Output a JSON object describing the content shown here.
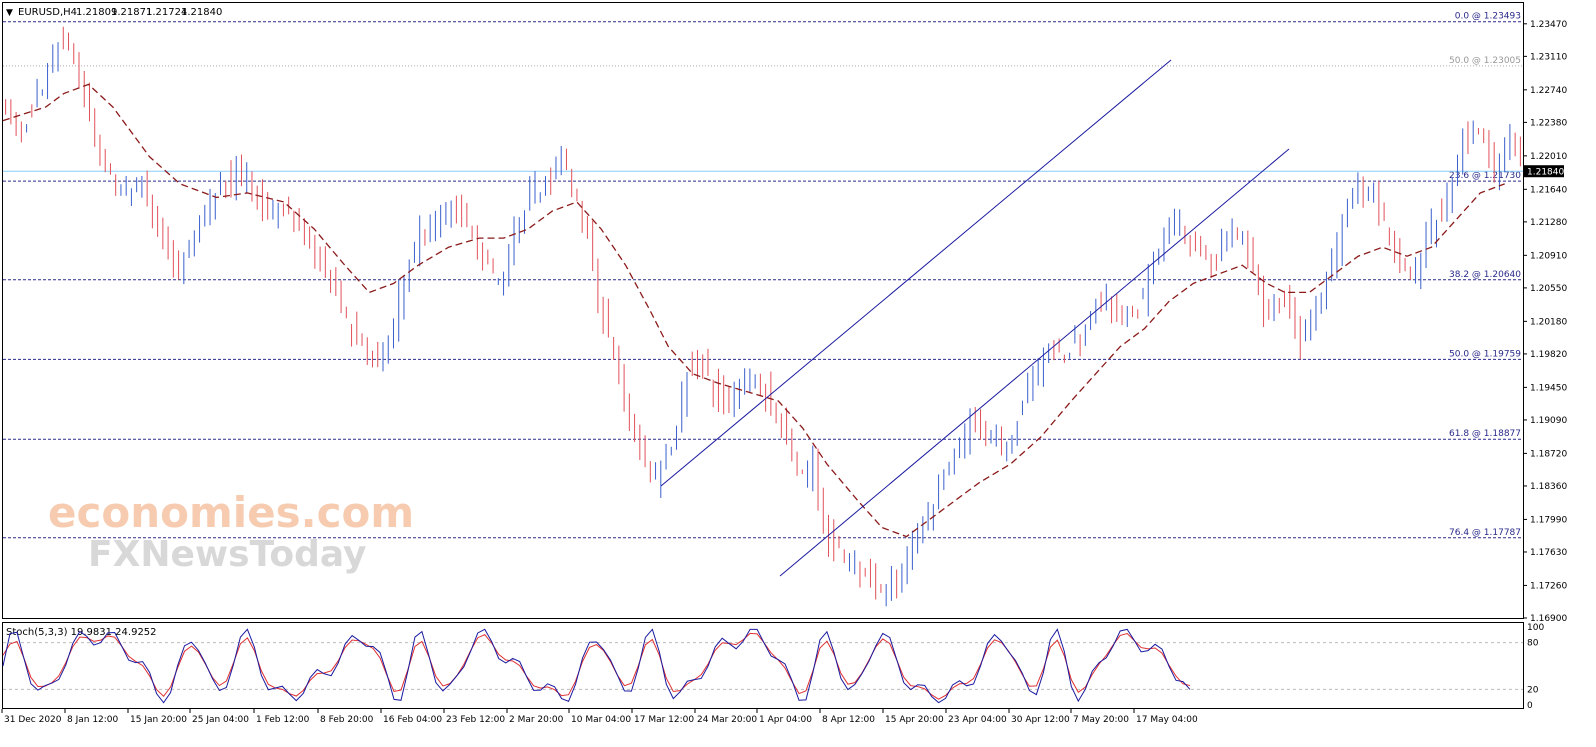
{
  "header": {
    "symbol": "EURUSD,H4",
    "open": "1.21809",
    "high": "1.21871",
    "low": "1.21724",
    "close": "1.21840"
  },
  "stoch_header": "Stoch(5,3,3) 19.9831 24.9252",
  "watermark": {
    "brand": "economies.com",
    "sub": "FXNewsToday"
  },
  "colors": {
    "bull": "#3a5fcd",
    "bear": "#e0505a",
    "ma": "#8b1a1a",
    "fib": "#2a2a8a",
    "fib50top": "#aaaaaa",
    "channel": "#1a1aa0",
    "price_line": "#87cefa",
    "stoch_main": "#1a1aa0",
    "stoch_signal": "#e03030"
  },
  "chart_data": {
    "type": "candlestick",
    "ylim": [
      1.169,
      1.237
    ],
    "y_ticks": [
      "1.23470",
      "1.23110",
      "1.22740",
      "1.22380",
      "1.22010",
      "1.21640",
      "1.21280",
      "1.20910",
      "1.20550",
      "1.20180",
      "1.19820",
      "1.19450",
      "1.19090",
      "1.18720",
      "1.18360",
      "1.17990",
      "1.17630",
      "1.17260",
      "1.16900"
    ],
    "current_price_label": "1.21840",
    "x_ticks": [
      "31 Dec 2020",
      "8 Jan 12:00",
      "15 Jan 20:00",
      "25 Jan 04:00",
      "1 Feb 12:00",
      "8 Feb 20:00",
      "16 Feb 04:00",
      "23 Feb 12:00",
      "2 Mar 20:00",
      "10 Mar 04:00",
      "17 Mar 12:00",
      "24 Mar 20:00",
      "1 Apr 04:00",
      "8 Apr 12:00",
      "15 Apr 20:00",
      "23 Apr 04:00",
      "30 Apr 12:00",
      "7 May 20:00",
      "17 May 04:00"
    ],
    "n_bars": 290,
    "path_points": [
      [
        0,
        1.227
      ],
      [
        6,
        1.222
      ],
      [
        14,
        1.228
      ],
      [
        20,
        1.233
      ],
      [
        26,
        1.229
      ],
      [
        32,
        1.22
      ],
      [
        38,
        1.216
      ],
      [
        46,
        1.217
      ],
      [
        54,
        1.21
      ],
      [
        58,
        1.207
      ],
      [
        64,
        1.212
      ],
      [
        72,
        1.217
      ],
      [
        80,
        1.218
      ],
      [
        88,
        1.214
      ],
      [
        94,
        1.214
      ],
      [
        100,
        1.211
      ],
      [
        106,
        1.208
      ],
      [
        112,
        1.203
      ],
      [
        118,
        1.2
      ],
      [
        124,
        1.197
      ],
      [
        128,
        1.201
      ],
      [
        132,
        1.206
      ],
      [
        136,
        1.21
      ],
      [
        142,
        1.213
      ],
      [
        148,
        1.214
      ],
      [
        154,
        1.212
      ],
      [
        160,
        1.208
      ],
      [
        164,
        1.205
      ],
      [
        168,
        1.212
      ],
      [
        174,
        1.216
      ],
      [
        180,
        1.217
      ],
      [
        184,
        1.22
      ],
      [
        188,
        1.216
      ],
      [
        192,
        1.212
      ],
      [
        196,
        1.204
      ],
      [
        202,
        1.196
      ],
      [
        208,
        1.189
      ],
      [
        214,
        1.184
      ],
      [
        220,
        1.188
      ],
      [
        226,
        1.198
      ],
      [
        232,
        1.196
      ],
      [
        238,
        1.192
      ],
      [
        244,
        1.196
      ],
      [
        250,
        1.195
      ],
      [
        256,
        1.19
      ],
      [
        262,
        1.185
      ],
      [
        266,
        1.186
      ],
      [
        270,
        1.178
      ],
      [
        276,
        1.176
      ],
      [
        282,
        1.174
      ],
      [
        288,
        1.172
      ],
      [
        294,
        1.173
      ],
      [
        300,
        1.178
      ],
      [
        306,
        1.182
      ],
      [
        312,
        1.187
      ],
      [
        318,
        1.19
      ],
      [
        324,
        1.189
      ],
      [
        330,
        1.188
      ],
      [
        336,
        1.194
      ],
      [
        342,
        1.198
      ],
      [
        348,
        1.198
      ],
      [
        354,
        1.2
      ],
      [
        360,
        1.205
      ],
      [
        366,
        1.203
      ],
      [
        372,
        1.203
      ],
      [
        378,
        1.208
      ],
      [
        384,
        1.213
      ],
      [
        390,
        1.211
      ],
      [
        396,
        1.208
      ],
      [
        402,
        1.212
      ],
      [
        408,
        1.21
      ],
      [
        414,
        1.203
      ],
      [
        420,
        1.204
      ],
      [
        426,
        1.2
      ],
      [
        432,
        1.204
      ],
      [
        438,
        1.21
      ],
      [
        444,
        1.217
      ],
      [
        450,
        1.216
      ],
      [
        456,
        1.21
      ],
      [
        462,
        1.206
      ],
      [
        468,
        1.212
      ],
      [
        474,
        1.215
      ],
      [
        480,
        1.223
      ],
      [
        486,
        1.223
      ],
      [
        490,
        1.217
      ],
      [
        494,
        1.223
      ],
      [
        498,
        1.2184
      ]
    ],
    "ma_points": [
      [
        0,
        1.224
      ],
      [
        14,
        1.2255
      ],
      [
        20,
        1.227
      ],
      [
        28,
        1.228
      ],
      [
        36,
        1.2255
      ],
      [
        48,
        1.22
      ],
      [
        58,
        1.217
      ],
      [
        70,
        1.2155
      ],
      [
        80,
        1.216
      ],
      [
        92,
        1.215
      ],
      [
        102,
        1.212
      ],
      [
        112,
        1.208
      ],
      [
        120,
        1.205
      ],
      [
        128,
        1.206
      ],
      [
        136,
        1.208
      ],
      [
        146,
        1.21
      ],
      [
        156,
        1.211
      ],
      [
        164,
        1.211
      ],
      [
        172,
        1.212
      ],
      [
        180,
        1.214
      ],
      [
        188,
        1.215
      ],
      [
        196,
        1.212
      ],
      [
        204,
        1.208
      ],
      [
        212,
        1.203
      ],
      [
        218,
        1.199
      ],
      [
        226,
        1.196
      ],
      [
        234,
        1.195
      ],
      [
        244,
        1.194
      ],
      [
        254,
        1.193
      ],
      [
        262,
        1.19
      ],
      [
        270,
        1.186
      ],
      [
        280,
        1.182
      ],
      [
        288,
        1.179
      ],
      [
        296,
        1.178
      ],
      [
        304,
        1.18
      ],
      [
        312,
        1.182
      ],
      [
        320,
        1.184
      ],
      [
        330,
        1.186
      ],
      [
        340,
        1.189
      ],
      [
        350,
        1.193
      ],
      [
        358,
        1.196
      ],
      [
        366,
        1.199
      ],
      [
        374,
        1.201
      ],
      [
        382,
        1.204
      ],
      [
        390,
        1.206
      ],
      [
        398,
        1.207
      ],
      [
        406,
        1.208
      ],
      [
        414,
        1.206
      ],
      [
        420,
        1.205
      ],
      [
        428,
        1.205
      ],
      [
        436,
        1.207
      ],
      [
        444,
        1.209
      ],
      [
        452,
        1.21
      ],
      [
        460,
        1.209
      ],
      [
        468,
        1.21
      ],
      [
        476,
        1.213
      ],
      [
        484,
        1.216
      ],
      [
        492,
        1.217
      ]
    ],
    "fib_levels": [
      {
        "label": "0.0 @ 1.23493",
        "price": 1.23493
      },
      {
        "label": "50.0 @ 1.23005",
        "price": 1.23005
      },
      {
        "label": "23.6 @ 1.21730",
        "price": 1.2173
      },
      {
        "label": "38.2 @ 1.20640",
        "price": 1.2064
      },
      {
        "label": "50.0 @ 1.19759",
        "price": 1.19759
      },
      {
        "label": "61.8 @ 1.18877",
        "price": 1.18877
      },
      {
        "label": "76.4 @ 1.17787",
        "price": 1.17787
      }
    ],
    "stoch_ylim": [
      0,
      100
    ],
    "stoch_ticks": [
      "100",
      "80",
      "20",
      "0"
    ],
    "stoch_current": [
      19.9831,
      24.9252
    ]
  }
}
